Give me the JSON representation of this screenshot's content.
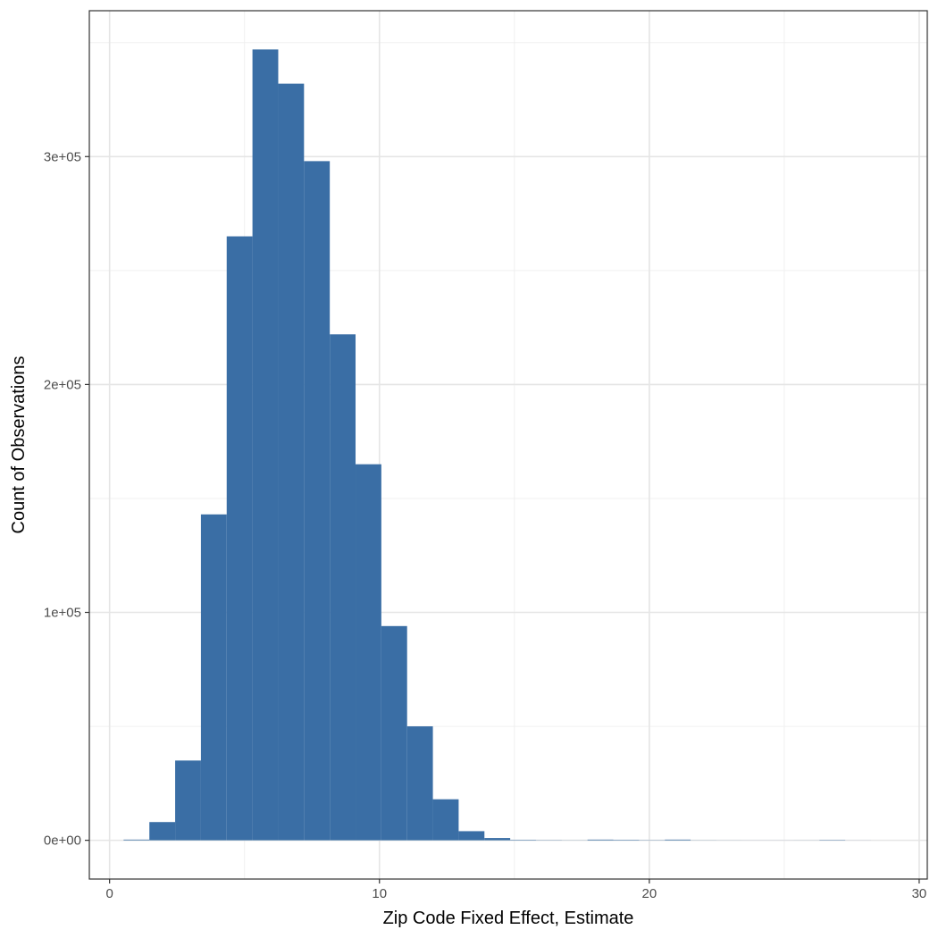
{
  "chart_data": {
    "type": "bar",
    "title": "",
    "xlabel": "Zip Code Fixed Effect, Estimate",
    "ylabel": "Count of Observations",
    "xlim": [
      -0.75,
      30.3
    ],
    "ylim": [
      -17000,
      364000
    ],
    "x_ticks": [
      0,
      10,
      20,
      30
    ],
    "x_tick_labels": [
      "0",
      "10",
      "20",
      "30"
    ],
    "y_ticks": [
      0,
      100000,
      200000,
      300000
    ],
    "y_tick_labels": [
      "0e+00",
      "1e+05",
      "2e+05",
      "3e+05"
    ],
    "grid": true,
    "legend": "none",
    "bar_color": "#3A6EA5",
    "bin_width": 0.955,
    "bin_starts": [
      0.52,
      1.475,
      2.43,
      3.385,
      4.34,
      5.295,
      6.25,
      7.205,
      8.16,
      9.115,
      10.07,
      11.025,
      11.98,
      12.935,
      13.89,
      14.845,
      15.8,
      16.755,
      17.71,
      18.665,
      19.62,
      20.575,
      21.53,
      22.485,
      23.44,
      24.395,
      25.35,
      26.305,
      27.26,
      28.215
    ],
    "values": [
      300,
      8000,
      35000,
      143000,
      265000,
      347000,
      332000,
      298000,
      222000,
      165000,
      94000,
      50000,
      18000,
      4000,
      1000,
      200,
      100,
      50,
      300,
      200,
      100,
      300,
      50,
      30,
      20,
      20,
      30,
      150,
      20,
      0
    ]
  }
}
